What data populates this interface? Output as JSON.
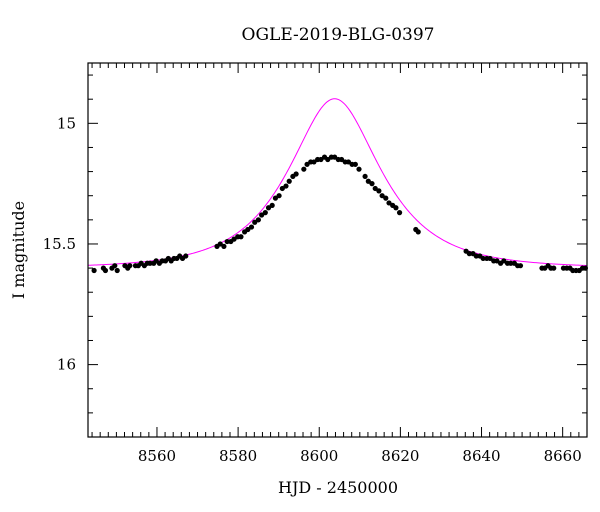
{
  "chart_data": {
    "type": "scatter",
    "title": "OGLE-2019-BLG-0397",
    "xlabel": "HJD - 2450000",
    "ylabel": "I magnitude",
    "xlim": [
      8543,
      8666
    ],
    "ylim": [
      16.3,
      14.75
    ],
    "y_inverted": true,
    "x_ticks": [
      8560,
      8580,
      8600,
      8620,
      8640,
      8660
    ],
    "x_tick_labels": [
      "8560",
      "8580",
      "8600",
      "8620",
      "8640",
      "8660"
    ],
    "y_ticks": [
      15,
      15.5,
      16
    ],
    "y_tick_labels": [
      "15",
      "15.5",
      "16"
    ],
    "grid": false,
    "model": {
      "name": "",
      "color": "#ff00ff",
      "t0": 8603.8,
      "u0": 0.59,
      "tE": 18.0,
      "base_mag": 15.6
    },
    "series": [
      {
        "name": "",
        "color": "#000000",
        "x": [
          8544.5,
          8546.8,
          8547.3,
          8548.9,
          8549.6,
          8550.2,
          8552.1,
          8552.8,
          8553.3,
          8554.7,
          8555.4,
          8556.1,
          8556.9,
          8557.6,
          8558.3,
          8559.2,
          8559.8,
          8560.6,
          8561.3,
          8562.1,
          8562.8,
          8563.5,
          8564.2,
          8564.9,
          8565.6,
          8566.3,
          8567.1,
          8574.8,
          8575.6,
          8576.5,
          8577.3,
          8578.2,
          8579.0,
          8579.9,
          8580.7,
          8581.6,
          8582.4,
          8583.3,
          8584.1,
          8585.0,
          8585.8,
          8586.7,
          8587.5,
          8588.4,
          8589.2,
          8590.1,
          8590.9,
          8591.8,
          8592.6,
          8593.5,
          8594.3,
          8596.2,
          8597.0,
          8597.9,
          8598.7,
          8599.6,
          8600.4,
          8601.3,
          8602.1,
          8603.0,
          8603.8,
          8604.7,
          8605.5,
          8606.4,
          8607.2,
          8608.1,
          8608.9,
          8609.8,
          8611.3,
          8612.1,
          8613.0,
          8613.8,
          8614.7,
          8615.5,
          8616.4,
          8617.2,
          8618.1,
          8618.9,
          8619.8,
          8623.8,
          8624.4,
          8636.2,
          8637.0,
          8637.9,
          8638.7,
          8639.6,
          8640.4,
          8641.3,
          8642.1,
          8643.0,
          8643.8,
          8644.7,
          8645.5,
          8646.4,
          8647.2,
          8648.1,
          8648.9,
          8649.6,
          8654.9,
          8655.6,
          8656.4,
          8657.1,
          8657.8,
          8660.2,
          8661.0,
          8661.8,
          8662.5,
          8663.3,
          8664.1,
          8664.9,
          8665.6
        ],
        "y": [
          15.61,
          15.6,
          15.61,
          15.6,
          15.59,
          15.61,
          15.59,
          15.6,
          15.59,
          15.59,
          15.59,
          15.58,
          15.59,
          15.58,
          15.58,
          15.58,
          15.57,
          15.58,
          15.57,
          15.57,
          15.56,
          15.57,
          15.56,
          15.56,
          15.55,
          15.56,
          15.55,
          15.51,
          15.5,
          15.51,
          15.49,
          15.49,
          15.48,
          15.47,
          15.47,
          15.45,
          15.44,
          15.43,
          15.41,
          15.4,
          15.38,
          15.37,
          15.35,
          15.34,
          15.31,
          15.3,
          15.27,
          15.26,
          15.24,
          15.22,
          15.21,
          15.19,
          15.17,
          15.16,
          15.16,
          15.15,
          15.15,
          15.14,
          15.15,
          15.14,
          15.14,
          15.15,
          15.15,
          15.16,
          15.16,
          15.17,
          15.17,
          15.19,
          15.22,
          15.24,
          15.25,
          15.27,
          15.28,
          15.3,
          15.31,
          15.33,
          15.34,
          15.35,
          15.37,
          15.44,
          15.45,
          15.53,
          15.54,
          15.54,
          15.55,
          15.55,
          15.56,
          15.56,
          15.56,
          15.57,
          15.57,
          15.58,
          15.57,
          15.58,
          15.58,
          15.58,
          15.59,
          15.59,
          15.6,
          15.6,
          15.59,
          15.6,
          15.6,
          15.6,
          15.6,
          15.6,
          15.61,
          15.61,
          15.61,
          15.6,
          15.6
        ]
      }
    ]
  }
}
